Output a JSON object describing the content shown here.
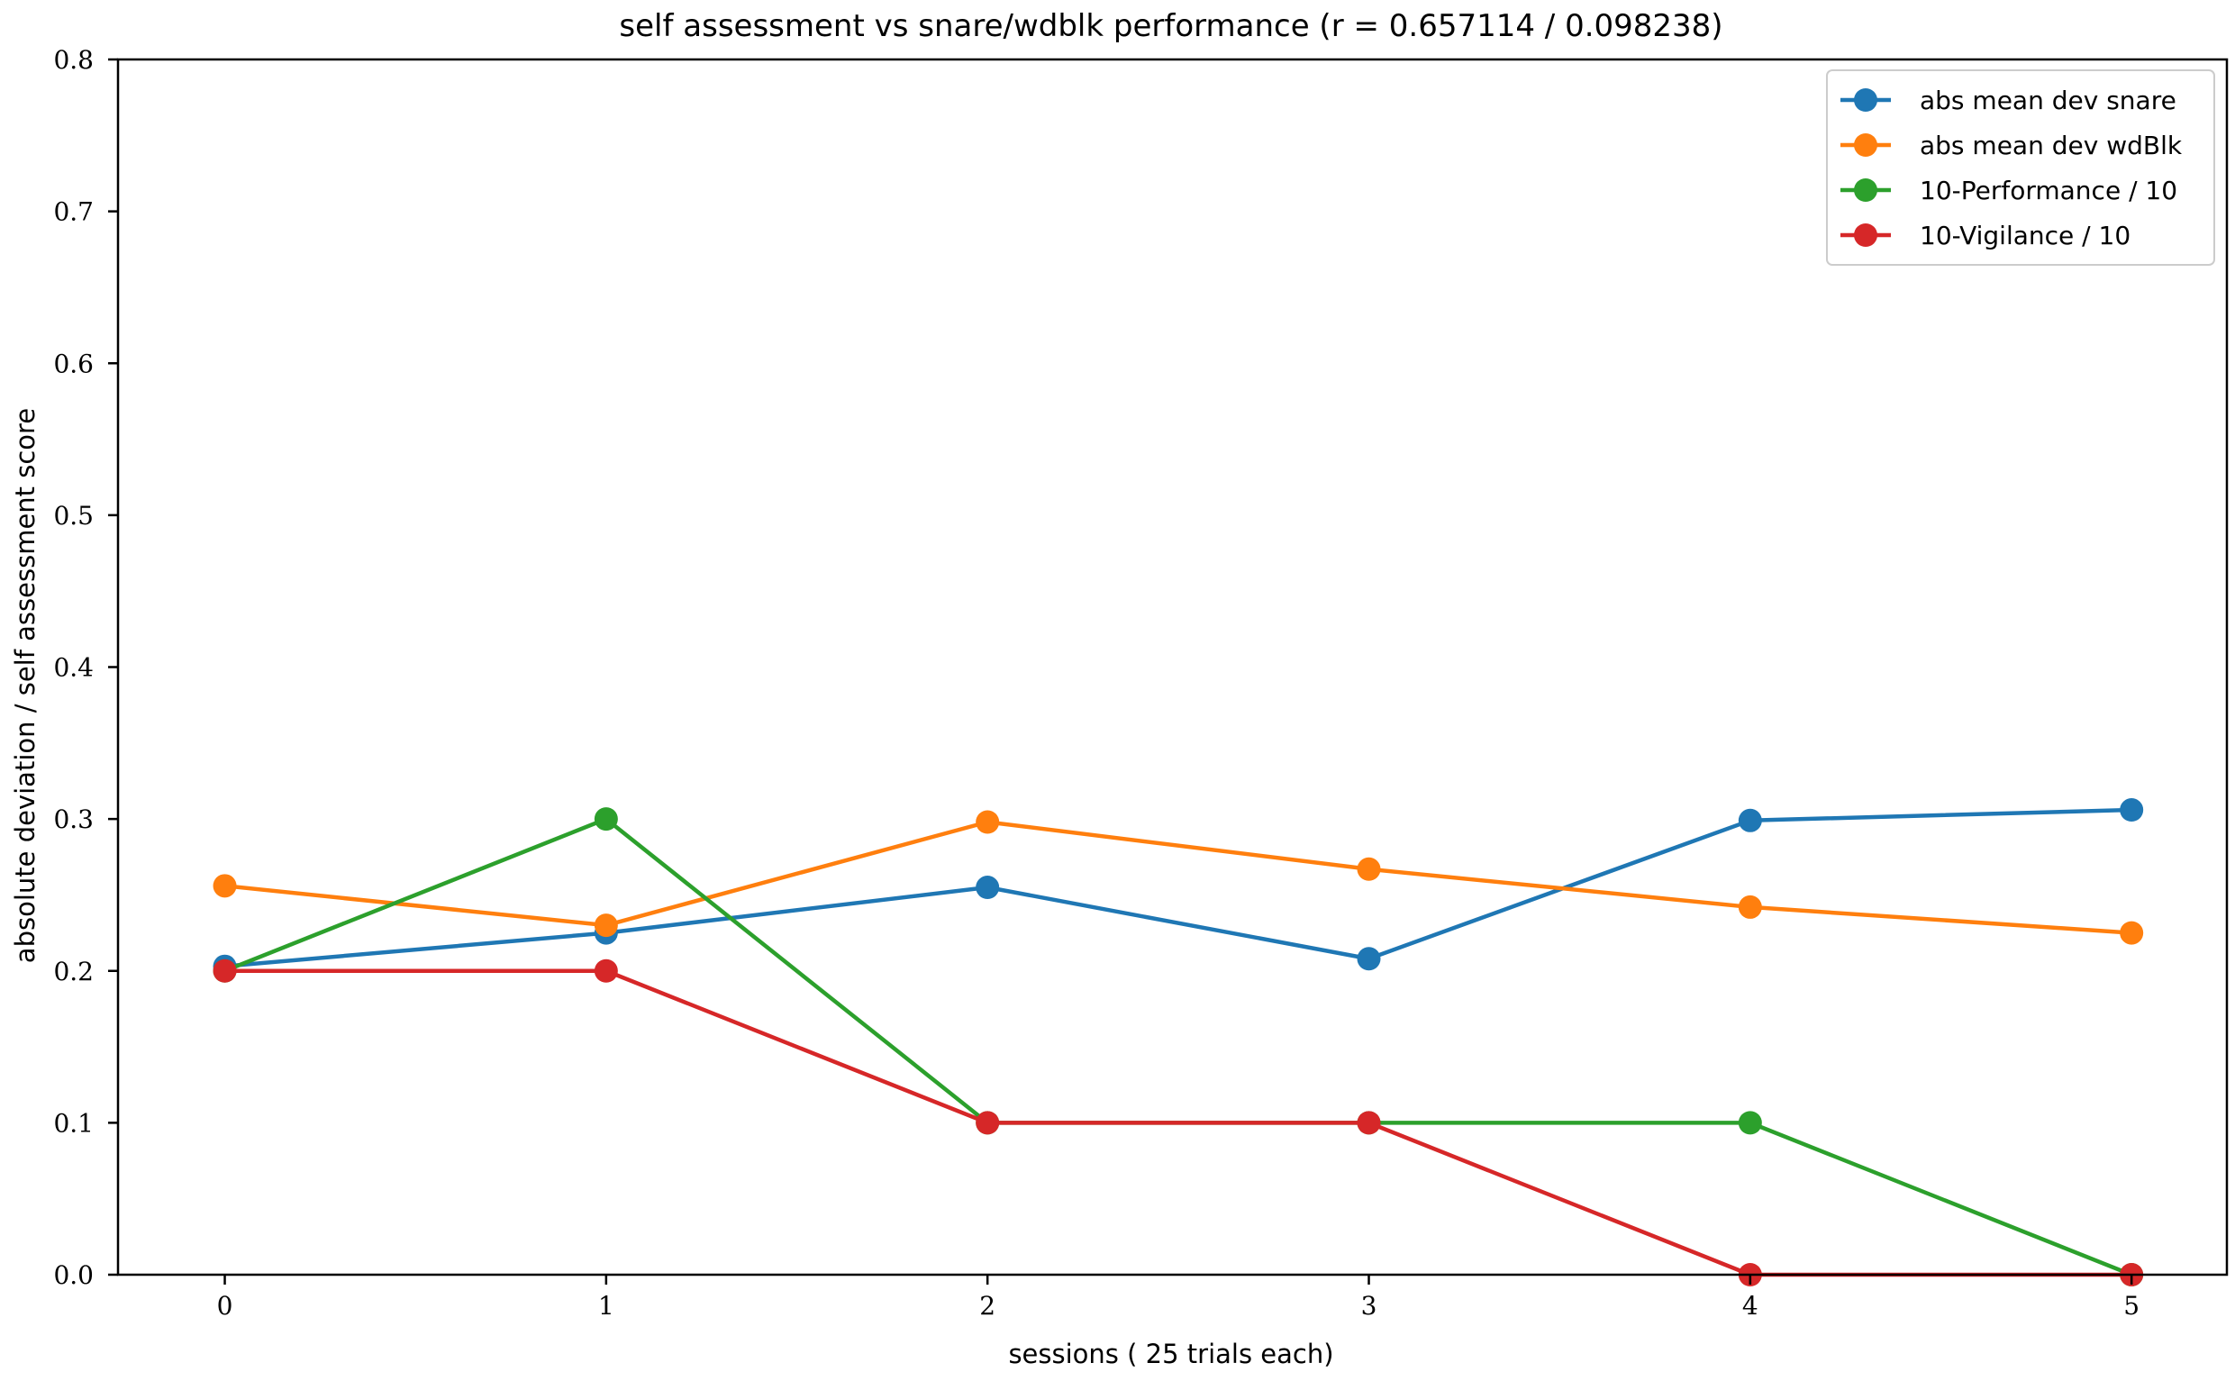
{
  "chart_data": {
    "type": "line",
    "title": "self assessment vs snare/wdblk performance (r = 0.657114 / 0.098238)",
    "xlabel": "sessions ( 25 trials each)",
    "ylabel": "absolute deviation / self assessment score",
    "x": [
      0,
      1,
      2,
      3,
      4,
      5
    ],
    "x_ticks": [
      "0",
      "1",
      "2",
      "3",
      "4",
      "5"
    ],
    "y_ticks": [
      "0.0",
      "0.1",
      "0.2",
      "0.3",
      "0.4",
      "0.5",
      "0.6",
      "0.7",
      "0.8"
    ],
    "xlim": [
      -0.28,
      5.25
    ],
    "ylim": [
      0,
      0.8
    ],
    "grid": false,
    "legend_position": "top-right",
    "series": [
      {
        "name": "abs mean dev snare",
        "color": "#1f77b4",
        "values": [
          0.203,
          0.225,
          0.255,
          0.208,
          0.299,
          0.306
        ]
      },
      {
        "name": "abs mean dev wdBlk",
        "color": "#ff7f0e",
        "values": [
          0.256,
          0.23,
          0.298,
          0.267,
          0.242,
          0.225
        ]
      },
      {
        "name": "10-Performance / 10",
        "color": "#2ca02c",
        "values": [
          0.2,
          0.3,
          0.1,
          0.1,
          0.1,
          0.0
        ]
      },
      {
        "name": "10-Vigilance / 10",
        "color": "#d62728",
        "values": [
          0.2,
          0.2,
          0.1,
          0.1,
          0.0,
          0.0
        ]
      }
    ]
  }
}
